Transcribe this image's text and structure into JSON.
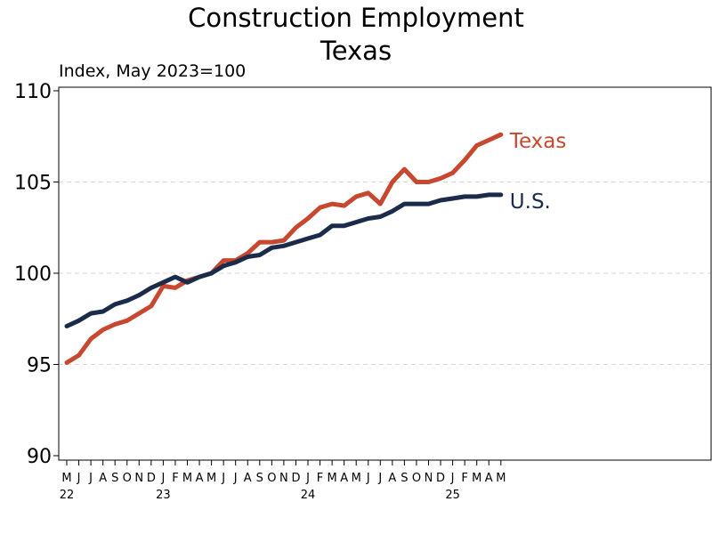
{
  "chart_data": {
    "type": "line",
    "title": "Construction Employment",
    "subtitle": "Texas",
    "units_label": "Index, May 2023=100",
    "xlabel": "",
    "ylabel": "",
    "ylim": [
      90,
      110
    ],
    "y_ticks": [
      "90",
      "95",
      "100",
      "105",
      "110"
    ],
    "grid": "horizontal dashed",
    "legend": "inline labels at right end of lines",
    "x_month_labels": [
      "M",
      "J",
      "J",
      "A",
      "S",
      "O",
      "N",
      "D",
      "J",
      "F",
      "M",
      "A",
      "M",
      "J",
      "J",
      "A",
      "S",
      "O",
      "N",
      "D",
      "J",
      "F",
      "M",
      "A",
      "M",
      "J",
      "J",
      "A",
      "S",
      "O",
      "N",
      "D",
      "J",
      "F",
      "M",
      "A",
      "M"
    ],
    "x_year_labels": [
      {
        "index": 0,
        "label": "22"
      },
      {
        "index": 8,
        "label": "23"
      },
      {
        "index": 20,
        "label": "24"
      },
      {
        "index": 32,
        "label": "25"
      }
    ],
    "x_months": [
      "2022-05",
      "2022-06",
      "2022-07",
      "2022-08",
      "2022-09",
      "2022-10",
      "2022-11",
      "2022-12",
      "2023-01",
      "2023-02",
      "2023-03",
      "2023-04",
      "2023-05",
      "2023-06",
      "2023-07",
      "2023-08",
      "2023-09",
      "2023-10",
      "2023-11",
      "2023-12",
      "2024-01",
      "2024-02",
      "2024-03",
      "2024-04",
      "2024-05",
      "2024-06",
      "2024-07",
      "2024-08",
      "2024-09",
      "2024-10",
      "2024-11",
      "2024-12",
      "2025-01",
      "2025-02",
      "2025-03",
      "2025-04",
      "2025-05"
    ],
    "series": [
      {
        "name": "Texas",
        "color": "#c8472f",
        "values": [
          95.1,
          95.5,
          96.4,
          96.9,
          97.2,
          97.4,
          97.8,
          98.2,
          99.3,
          99.2,
          99.6,
          99.8,
          100.0,
          100.7,
          100.7,
          101.1,
          101.7,
          101.7,
          101.8,
          102.5,
          103.0,
          103.6,
          103.8,
          103.7,
          104.2,
          104.4,
          103.8,
          105.0,
          105.7,
          105.0,
          105.0,
          105.2,
          105.5,
          106.2,
          107.0,
          107.3,
          107.6
        ]
      },
      {
        "name": "U.S.",
        "color": "#1b2b4a",
        "values": [
          97.1,
          97.4,
          97.8,
          97.9,
          98.3,
          98.5,
          98.8,
          99.2,
          99.5,
          99.8,
          99.5,
          99.8,
          100.0,
          100.4,
          100.6,
          100.9,
          101.0,
          101.4,
          101.5,
          101.7,
          101.9,
          102.1,
          102.6,
          102.6,
          102.8,
          103.0,
          103.1,
          103.4,
          103.8,
          103.8,
          103.8,
          104.0,
          104.1,
          104.2,
          104.2,
          104.3,
          104.3
        ]
      }
    ]
  }
}
